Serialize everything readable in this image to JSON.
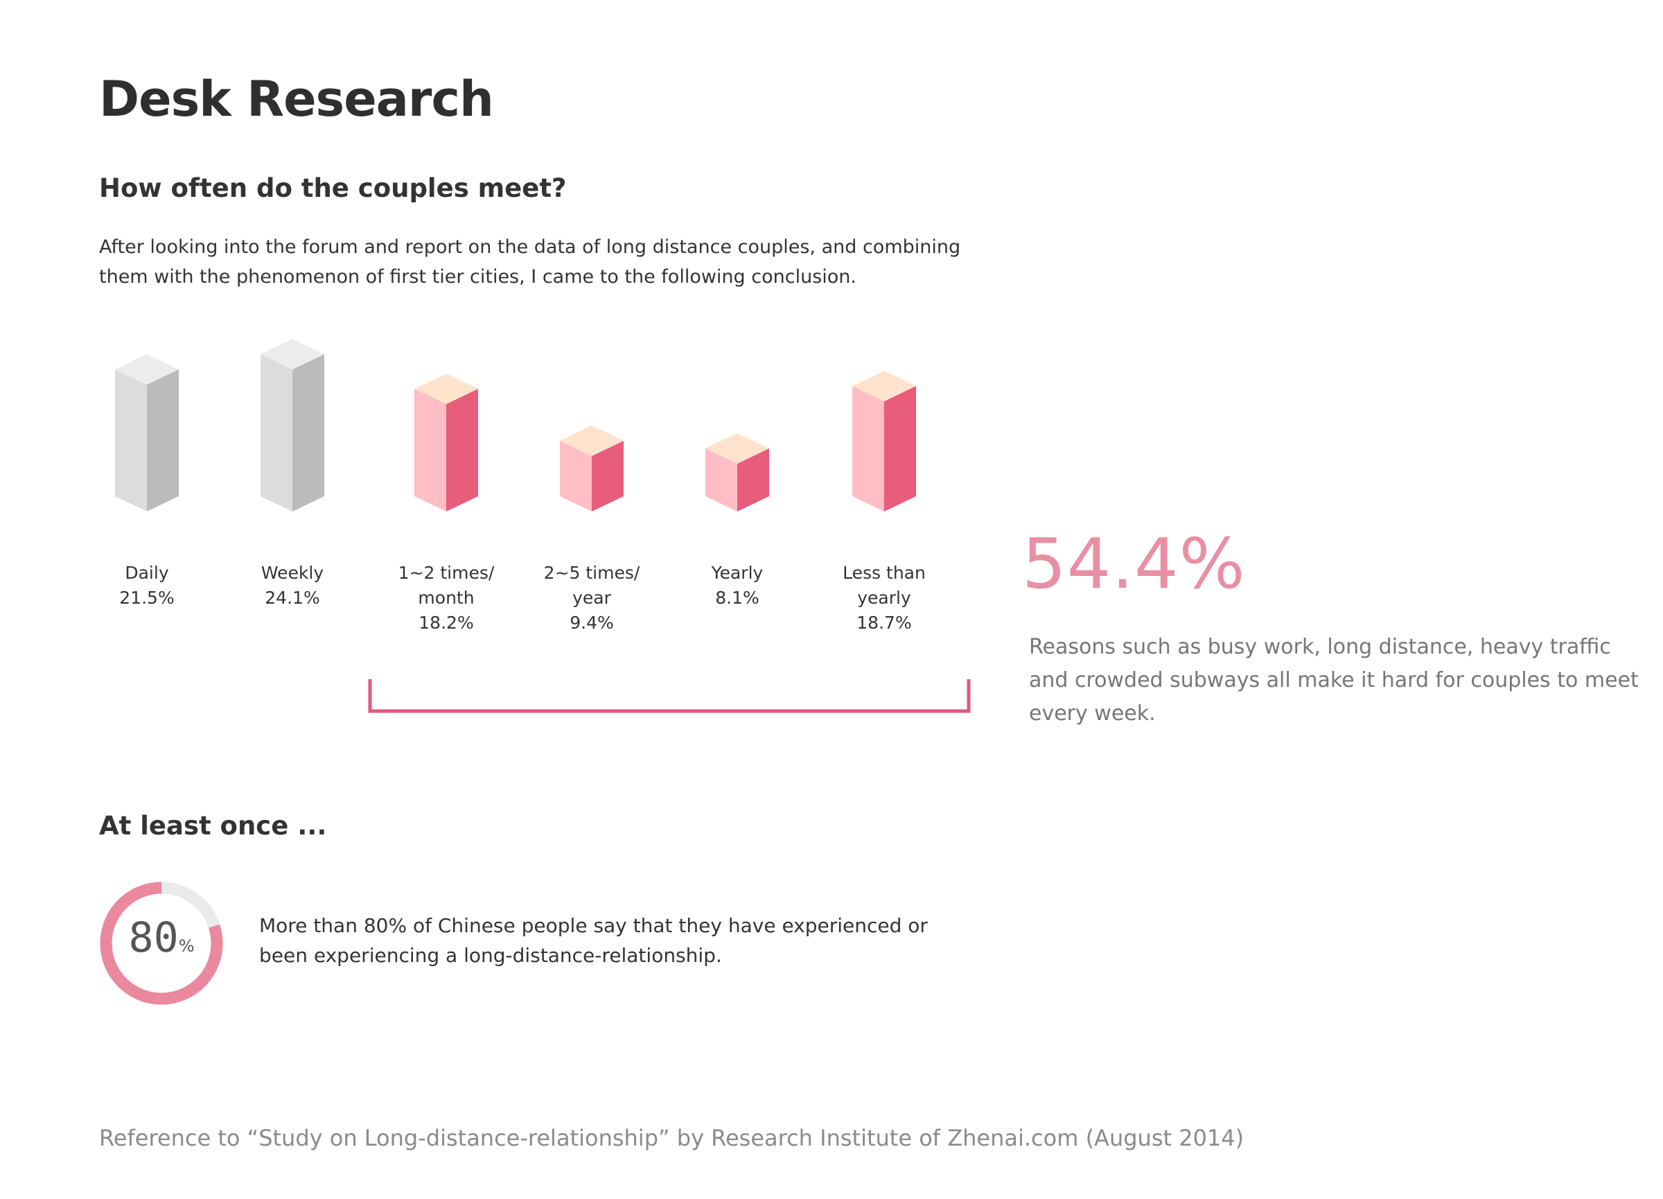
{
  "page": {
    "title": "Desk Research",
    "question": "How often do the couples meet?",
    "intro": "After looking into the forum and report on the data of long distance couples, and combining them with the phenomenon of first tier cities, I came to the following conclusion."
  },
  "colors": {
    "gray_front": "#dcdcdc",
    "gray_side": "#bbbbbb",
    "gray_top": "#ececec",
    "pink_front": "#ffbec6",
    "pink_side": "#e85c7c",
    "pink_top": "#ffe3cd",
    "bracket": "#e1587a",
    "accent_text": "#e98fa3",
    "donut_pink": "#ea889e",
    "donut_gray": "#eaeaea"
  },
  "chart_data": {
    "type": "bar",
    "categories": [
      [
        "Daily"
      ],
      [
        "Weekly"
      ],
      [
        "1~2 times/",
        "month"
      ],
      [
        "2~5 times/",
        "year"
      ],
      [
        "Yearly"
      ],
      [
        "Less than",
        "yearly"
      ]
    ],
    "values": [
      21.5,
      24.1,
      18.2,
      9.4,
      8.1,
      18.7
    ],
    "value_labels": [
      "21.5%",
      "24.1%",
      "18.2%",
      "9.4%",
      "8.1%",
      "18.7%"
    ],
    "highlight": [
      false,
      false,
      true,
      true,
      true,
      true
    ],
    "ylim": [
      0,
      24.1
    ],
    "bracket_span": [
      "1~2 times/ month",
      "Less than yearly"
    ]
  },
  "summary": {
    "percent": "54.4%",
    "note": "Reasons such as busy work, long distance, heavy traffic and crowded subways all make it hard for couples to meet every week."
  },
  "at_least": {
    "heading": "At least once ...",
    "donut_value": 80,
    "donut_number": "80",
    "donut_unit": "%",
    "text": "More than 80% of Chinese people say that they have experienced or been experiencing a long-distance-relationship."
  },
  "reference": "Reference to “Study on Long-distance-relationship” by Research Institute of Zhenai.com (August 2014)"
}
